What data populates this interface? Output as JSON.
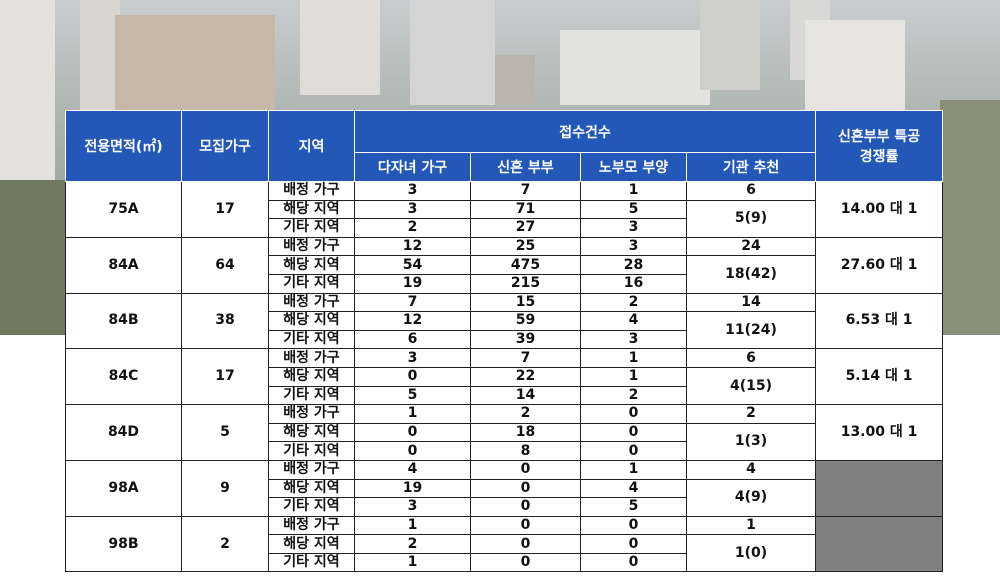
{
  "header": {
    "area": "전용면적(㎡)",
    "households": "모집가구",
    "region": "지역",
    "applications": "접수건수",
    "rate": [
      "신혼부부 특공",
      "경쟁률"
    ],
    "sub": [
      "다자녀 가구",
      "신혼 부부",
      "노부모 부양",
      "기관 추천"
    ]
  },
  "groups": [
    {
      "area": "75A",
      "households": 17,
      "rows": [
        [
          "배정 가구",
          3,
          7,
          1
        ],
        [
          "해당 지역",
          3,
          71,
          5
        ],
        [
          "기타 지역",
          2,
          27,
          3
        ]
      ],
      "agency": [
        "6",
        "5(9)"
      ],
      "rate": "14.00 대 1"
    },
    {
      "area": "84A",
      "households": 64,
      "rows": [
        [
          "배정 가구",
          12,
          25,
          3
        ],
        [
          "해당 지역",
          54,
          475,
          28
        ],
        [
          "기타 지역",
          19,
          215,
          16
        ]
      ],
      "agency": [
        "24",
        "18(42)"
      ],
      "rate": "27.60 대 1"
    },
    {
      "area": "84B",
      "households": 38,
      "rows": [
        [
          "배정 가구",
          7,
          15,
          2
        ],
        [
          "해당 지역",
          12,
          59,
          4
        ],
        [
          "기타 지역",
          6,
          39,
          3
        ]
      ],
      "agency": [
        "14",
        "11(24)"
      ],
      "rate": "6.53 대 1"
    },
    {
      "area": "84C",
      "households": 17,
      "rows": [
        [
          "배정 가구",
          3,
          7,
          1
        ],
        [
          "해당 지역",
          0,
          22,
          1
        ],
        [
          "기타 지역",
          5,
          14,
          2
        ]
      ],
      "agency": [
        "6",
        "4(15)"
      ],
      "rate": "5.14 대 1"
    },
    {
      "area": "84D",
      "households": 5,
      "rows": [
        [
          "배정 가구",
          1,
          2,
          0
        ],
        [
          "해당 지역",
          0,
          18,
          0
        ],
        [
          "기타 지역",
          0,
          8,
          0
        ]
      ],
      "agency": [
        "2",
        "1(3)"
      ],
      "rate": "13.00 대 1"
    },
    {
      "area": "98A",
      "households": 9,
      "rows": [
        [
          "배정 가구",
          4,
          0,
          1
        ],
        [
          "해당 지역",
          19,
          0,
          4
        ],
        [
          "기타 지역",
          3,
          0,
          5
        ]
      ],
      "agency": [
        "4",
        "4(9)"
      ]
    },
    {
      "area": "98B",
      "households": 2,
      "rows": [
        [
          "배정 가구",
          1,
          0,
          0
        ],
        [
          "해당 지역",
          2,
          0,
          0
        ],
        [
          "기타 지역",
          1,
          0,
          0
        ]
      ],
      "agency": [
        "1",
        "1(0)"
      ]
    }
  ]
}
